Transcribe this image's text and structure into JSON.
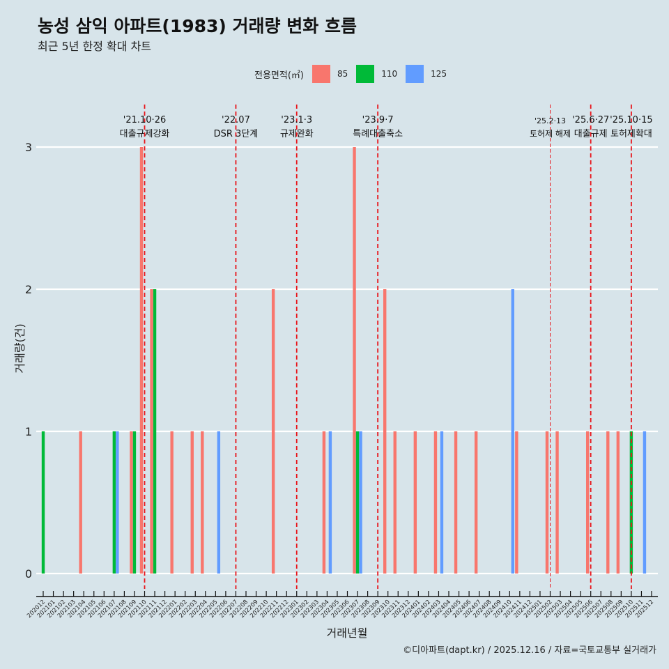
{
  "header": {
    "title": "농성 삼익 아파트(1983) 거래량 변화 흐름",
    "subtitle": "최근 5년 한정 확대 차트"
  },
  "caption": "©디아파트(dapt.kr) / 2025.12.16 / 자료=국토교통부 실거래가",
  "chart_data": {
    "type": "bar",
    "title": "농성 삼익 아파트(1983) 거래량 변화 흐름",
    "xlabel": "거래년월",
    "ylabel": "거래량(건)",
    "ylim": [
      0,
      3
    ],
    "yticks": [
      0,
      1,
      2,
      3
    ],
    "grid": true,
    "legend_position": "top",
    "legend_title": "전용면적(㎡)",
    "colors": {
      "85": "#F8766D",
      "110": "#00BA38",
      "125": "#619CFF"
    },
    "categories": [
      "202012",
      "202101",
      "202102",
      "202103",
      "202104",
      "202105",
      "202106",
      "202107",
      "202108",
      "202109",
      "202110",
      "202111",
      "202112",
      "202201",
      "202202",
      "202203",
      "202204",
      "202205",
      "202206",
      "202207",
      "202208",
      "202209",
      "202210",
      "202211",
      "202212",
      "202301",
      "202302",
      "202303",
      "202304",
      "202305",
      "202306",
      "202307",
      "202308",
      "202309",
      "202310",
      "202311",
      "202312",
      "202401",
      "202402",
      "202403",
      "202404",
      "202405",
      "202406",
      "202407",
      "202408",
      "202409",
      "202410",
      "202411",
      "202412",
      "202501",
      "202502",
      "202503",
      "202504",
      "202505",
      "202506",
      "202507",
      "202508",
      "202509",
      "202510",
      "202511",
      "202512"
    ],
    "series": [
      {
        "name": "85",
        "points": [
          [
            "202104",
            1
          ],
          [
            "202109",
            1
          ],
          [
            "202110",
            3
          ],
          [
            "202111",
            2
          ],
          [
            "202201",
            1
          ],
          [
            "202203",
            1
          ],
          [
            "202204",
            1
          ],
          [
            "202211",
            2
          ],
          [
            "202304",
            1
          ],
          [
            "202307",
            3
          ],
          [
            "202310",
            2
          ],
          [
            "202311",
            1
          ],
          [
            "202401",
            1
          ],
          [
            "202403",
            1
          ],
          [
            "202405",
            1
          ],
          [
            "202407",
            1
          ],
          [
            "202411",
            1
          ],
          [
            "202502",
            1
          ],
          [
            "202503",
            1
          ],
          [
            "202506",
            1
          ],
          [
            "202508",
            1
          ],
          [
            "202509",
            1
          ]
        ]
      },
      {
        "name": "110",
        "points": [
          [
            "202012",
            1
          ],
          [
            "202107",
            1
          ],
          [
            "202109",
            1
          ],
          [
            "202111",
            2
          ],
          [
            "202307",
            1
          ],
          [
            "202510",
            1
          ]
        ]
      },
      {
        "name": "125",
        "points": [
          [
            "202107",
            1
          ],
          [
            "202205",
            1
          ],
          [
            "202304",
            1
          ],
          [
            "202307",
            1
          ],
          [
            "202403",
            1
          ],
          [
            "202410",
            2
          ],
          [
            "202511",
            1
          ]
        ]
      }
    ],
    "annotations": [
      {
        "month": "202110",
        "date": "'21.10·26",
        "label": "대출규제강화",
        "minor": false
      },
      {
        "month": "202207",
        "date": "'22.07",
        "label": "DSR 3단계",
        "minor": false
      },
      {
        "month": "202301",
        "date": "'23.1·3",
        "label": "규제완화",
        "minor": false
      },
      {
        "month": "202309",
        "date": "'23.9·7",
        "label": "특례대출축소",
        "minor": false
      },
      {
        "month": "202502",
        "date": "'25.2·13",
        "label": "토허제 해제",
        "minor": true
      },
      {
        "month": "202506",
        "date": "'25.6·27",
        "label": "대출규제",
        "minor": false
      },
      {
        "month": "202510",
        "date": "'25.10·15",
        "label": "토허제확대",
        "minor": false
      }
    ]
  }
}
